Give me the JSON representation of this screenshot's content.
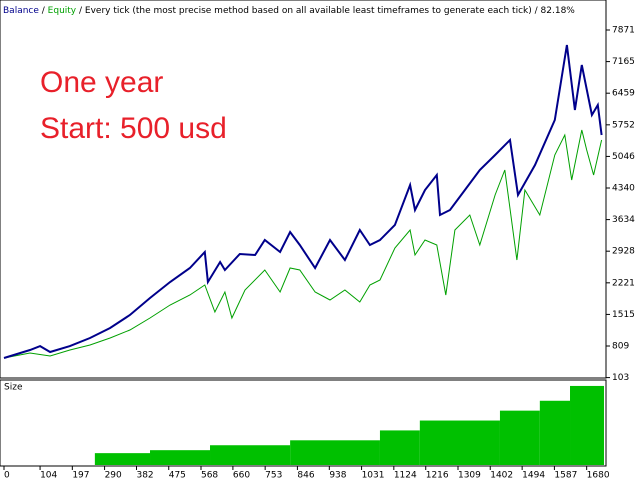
{
  "chart_data": {
    "type": "line",
    "separator": " / ",
    "header_mode": "Every tick (the most precise method based on all available least timeframes to generate each tick)",
    "header_quality": "82.18%",
    "annotations": [
      "One year",
      "Start: 500 usd"
    ],
    "xlim": [
      0,
      1730
    ],
    "xticks": [
      0,
      104,
      197,
      290,
      382,
      475,
      568,
      660,
      753,
      846,
      938,
      1031,
      1124,
      1216,
      1309,
      1402,
      1494,
      1587,
      1680
    ],
    "ylim": [
      94,
      8497
    ],
    "yticks": [
      103,
      809,
      1515,
      2221,
      2928,
      3634,
      4340,
      5046,
      5752,
      6459,
      7165,
      7871
    ],
    "grid": false,
    "series": [
      {
        "name": "Balance",
        "color": "#00008b",
        "x": [
          0,
          75,
          104,
          133,
          190,
          248,
          306,
          363,
          421,
          479,
          536,
          579,
          588,
          623,
          637,
          680,
          724,
          752,
          796,
          825,
          853,
          897,
          940,
          983,
          1026,
          1055,
          1084,
          1127,
          1171,
          1185,
          1214,
          1248,
          1257,
          1286,
          1329,
          1372,
          1416,
          1459,
          1482,
          1531,
          1588,
          1623,
          1646,
          1666,
          1695,
          1712,
          1723
        ],
        "values": [
          540,
          719,
          808,
          674,
          808,
          987,
          1211,
          1501,
          1881,
          2239,
          2552,
          2909,
          2239,
          2686,
          2507,
          2865,
          2842,
          3178,
          2909,
          3356,
          3066,
          2552,
          3178,
          2731,
          3401,
          3066,
          3178,
          3513,
          4407,
          3848,
          4295,
          4630,
          3736,
          3848,
          4295,
          4742,
          5077,
          5412,
          4183,
          4854,
          5860,
          7536,
          6083,
          7089,
          5971,
          6195,
          5524
        ]
      },
      {
        "name": "Equity",
        "color": "#00a000",
        "x": [
          0,
          75,
          133,
          190,
          248,
          306,
          363,
          421,
          479,
          536,
          579,
          608,
          637,
          657,
          695,
          752,
          796,
          825,
          853,
          897,
          940,
          983,
          1026,
          1055,
          1084,
          1127,
          1171,
          1185,
          1214,
          1248,
          1274,
          1300,
          1343,
          1372,
          1416,
          1444,
          1479,
          1502,
          1545,
          1588,
          1617,
          1637,
          1666,
          1680,
          1700,
          1723
        ],
        "values": [
          540,
          652,
          585,
          719,
          831,
          987,
          1166,
          1434,
          1725,
          1948,
          2172,
          1568,
          2015,
          1434,
          2060,
          2507,
          2015,
          2552,
          2507,
          2015,
          1837,
          2060,
          1792,
          2172,
          2284,
          2999,
          3401,
          2842,
          3178,
          3066,
          1948,
          3401,
          3736,
          3066,
          4183,
          4742,
          2731,
          4295,
          3736,
          5077,
          5524,
          4518,
          5636,
          5189,
          4630,
          5412
        ]
      }
    ],
    "size_panel": {
      "title": "Size",
      "color": "#00c000",
      "ylim": [
        0,
        0.85
      ],
      "bins": [
        262,
        421,
        594,
        825,
        1084,
        1199,
        1430,
        1545,
        1632,
        1730
      ],
      "values": [
        0.12,
        0.15,
        0.2,
        0.25,
        0.35,
        0.45,
        0.55,
        0.65,
        0.8
      ]
    }
  }
}
